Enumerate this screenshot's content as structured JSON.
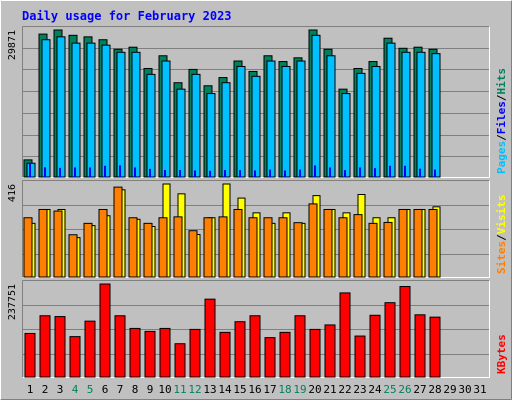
{
  "chart_data": {
    "type": "bar",
    "title": "Daily usage for February 2023",
    "categories": [
      "1",
      "2",
      "3",
      "4",
      "5",
      "6",
      "7",
      "8",
      "9",
      "10",
      "11",
      "12",
      "13",
      "14",
      "15",
      "16",
      "17",
      "18",
      "19",
      "20",
      "21",
      "22",
      "23",
      "24",
      "25",
      "26",
      "27",
      "28",
      "29",
      "30",
      "31"
    ],
    "weekend_days": [
      4,
      5,
      11,
      12,
      18,
      19,
      25,
      26
    ],
    "grid": true,
    "colors": {
      "background": "#c0c0c0",
      "plot": "#c0c0c0",
      "title": "#0000ff",
      "hits": "#00805c",
      "files": "#0000ff",
      "pages": "#00c0ff",
      "visits": "#ffff00",
      "sites": "#ff8000",
      "kbytes": "#ff0000",
      "weekday_label": "#000000",
      "weekend_label": "#00805c"
    },
    "panels": [
      {
        "id": "hits",
        "max_label": "29871",
        "ylim": [
          0,
          29871
        ],
        "legend": [
          "Pages",
          "Files",
          "Hits"
        ],
        "series": [
          {
            "name": "Hits",
            "values": [
              3480,
              29038,
              29871,
              28791,
              28481,
              27896,
              25961,
              26376,
              22052,
              24637,
              19163,
              21863,
              18543,
              20205,
              23568,
              21450,
              24637,
              23458,
              24219,
              29871,
              25961,
              17850,
              22052,
              23458,
              28200,
              26155,
              26376,
              25961,
              0,
              0,
              0
            ]
          },
          {
            "name": "Files",
            "values": [
              2800,
              27896,
              28481,
              27203,
              27203,
              26791,
              25339,
              25339,
              20855,
              23568,
              17850,
              20855,
              16953,
              19163,
              22461,
              20455,
              23568,
              22461,
              23568,
              28791,
              24637,
              16953,
              21060,
              22461,
              27203,
              25339,
              25339,
              25066,
              0,
              0,
              0
            ]
          },
          {
            "name": "Pages",
            "values": [
              2800,
              1970,
              1850,
              1930,
              1930,
              2280,
              2350,
              1930,
              1650,
              1420,
              1420,
              1330,
              1250,
              1420,
              1400,
              1330,
              1500,
              1330,
              1500,
              2350,
              1930,
              1400,
              1930,
              1800,
              2280,
              2280,
              1700,
              1500,
              0,
              0,
              0
            ]
          }
        ]
      },
      {
        "id": "visits",
        "max_label": "416",
        "ylim": [
          0,
          416
        ],
        "legend": [
          "Sites",
          "Visits"
        ],
        "series": [
          {
            "name": "Visits",
            "values": [
              240,
              302,
              302,
              176,
              230,
              274,
              390,
              258,
              226,
              416,
              372,
              190,
              265,
              416,
              353,
              287,
              240,
              287,
              240,
              364,
              302,
              287,
              369,
              265,
              265,
              302,
              302,
              314,
              0,
              0,
              0
            ]
          },
          {
            "name": "Sites",
            "values": [
              265,
              302,
              295,
              189,
              240,
              302,
              402,
              265,
              240,
              265,
              269,
              207,
              265,
              269,
              302,
              265,
              265,
              265,
              243,
              327,
              302,
              265,
              279,
              240,
              244,
              302,
              302,
              302,
              0,
              0,
              0
            ]
          }
        ]
      },
      {
        "id": "kbytes",
        "max_label": "237751",
        "ylim": [
          0,
          237751
        ],
        "legend": [
          "KBytes"
        ],
        "series": [
          {
            "name": "KBytes",
            "values": [
              111350,
              156600,
              154500,
              103250,
              142800,
              237751,
              156600,
              124200,
              116600,
              124200,
              85100,
              121700,
              199000,
              114150,
              141400,
              156600,
              100650,
              114150,
              156600,
              121700,
              133150,
              215000,
              104700,
              157800,
              190000,
              231400,
              159000,
              153000,
              0,
              0,
              0
            ]
          }
        ]
      }
    ]
  }
}
